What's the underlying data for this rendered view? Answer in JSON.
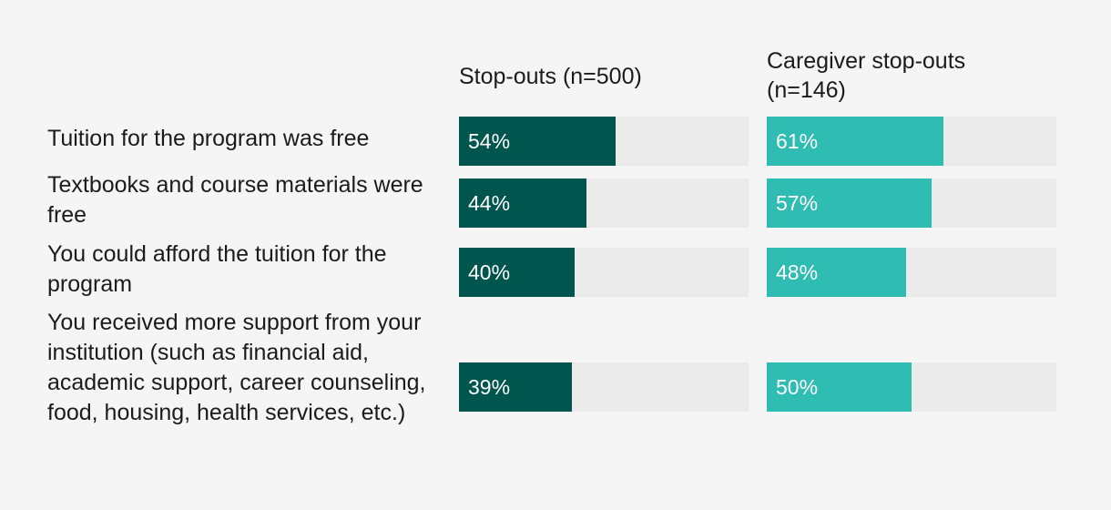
{
  "chart_data": {
    "type": "bar",
    "orientation": "horizontal",
    "categories": [
      "Tuition for the program was free",
      "Textbooks and course materials were free",
      "You could afford the tuition for the program",
      "You received more support from your institution (such as financial aid, academic support, career counseling, food, housing, health services, etc.)"
    ],
    "series": [
      {
        "name": "Stop-outs (n=500)",
        "color": "#00564e",
        "values": [
          54,
          44,
          40,
          39
        ],
        "labels": [
          "54%",
          "44%",
          "40%",
          "39%"
        ]
      },
      {
        "name": "Caregiver stop-outs (n=146)",
        "color": "#2ebcb3",
        "values": [
          61,
          57,
          48,
          50
        ],
        "labels": [
          "61%",
          "57%",
          "48%",
          "50%"
        ]
      }
    ],
    "xlim": [
      0,
      100
    ],
    "track_color": "#ebebeb",
    "title": "",
    "xlabel": "",
    "ylabel": ""
  }
}
